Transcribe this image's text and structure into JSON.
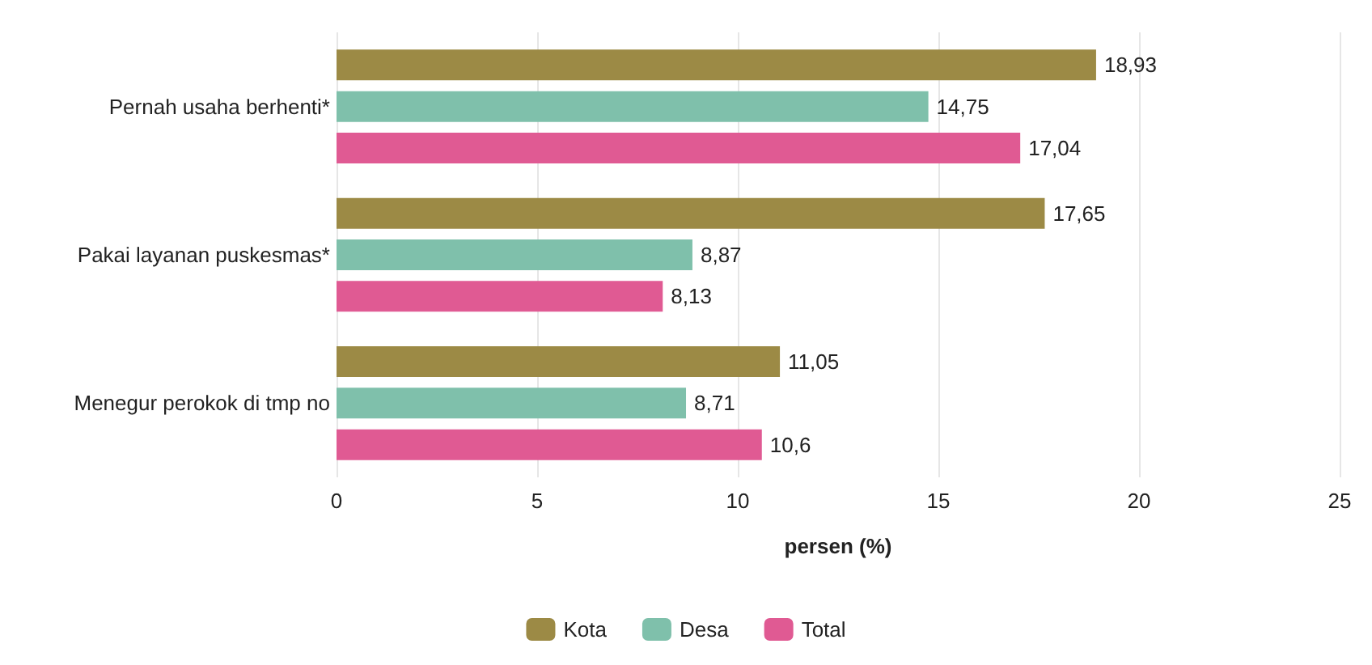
{
  "chart_data": {
    "type": "bar",
    "orientation": "horizontal",
    "xlabel": "persen (%)",
    "categories": [
      "Pernah usaha berhenti*",
      "Pakai layanan puskesmas*",
      "Menegur perokok di tmp no"
    ],
    "series": [
      {
        "name": "Kota",
        "color": "#9c8a45",
        "values": [
          18.93,
          17.65,
          11.05
        ],
        "value_labels": [
          "18,93",
          "17,65",
          "11,05"
        ]
      },
      {
        "name": "Desa",
        "color": "#7fc0ab",
        "values": [
          14.75,
          8.87,
          8.71
        ],
        "value_labels": [
          "14,75",
          "8,87",
          "8,71"
        ]
      },
      {
        "name": "Total",
        "color": "#e05a93",
        "values": [
          17.04,
          8.13,
          10.6
        ],
        "value_labels": [
          "17,04",
          "8,13",
          "10,6"
        ]
      }
    ],
    "xlim": [
      0,
      25
    ],
    "xticks": [
      0,
      5,
      10,
      15,
      20,
      25
    ],
    "grid": "x",
    "legend": "bottom"
  }
}
